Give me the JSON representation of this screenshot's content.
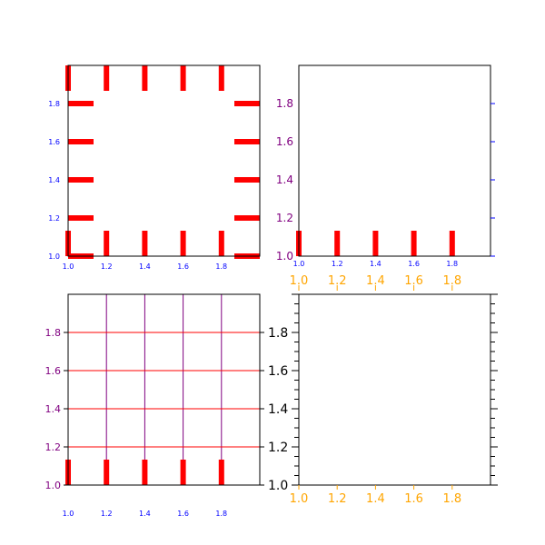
{
  "figure": {
    "background": "#ffffff"
  },
  "colors": {
    "red": "#ff0000",
    "blue": "#0000ff",
    "purple": "#800080",
    "orange": "#ffa500",
    "black": "#000000"
  },
  "chart_data": [
    {
      "type": "scatter",
      "panel": "top-left",
      "xlim": [
        1.0,
        2.0
      ],
      "ylim": [
        1.0,
        2.0
      ],
      "x_ticks": [
        1.0,
        1.2,
        1.4,
        1.6,
        1.8
      ],
      "x_tick_labels": [
        "1.0",
        "1.2",
        "1.4",
        "1.6",
        "1.8"
      ],
      "y_ticks": [
        1.0,
        1.2,
        1.4,
        1.6,
        1.8
      ],
      "y_tick_labels": [
        "1.0",
        "1.2",
        "1.4",
        "1.6",
        "1.8"
      ],
      "tick_label_color": "#0000ff",
      "tick_color": "#ff0000",
      "ticks_on": [
        "bottom",
        "top",
        "left",
        "right"
      ],
      "tick_style": "long thick inward",
      "grid": false
    },
    {
      "type": "scatter",
      "panel": "top-right",
      "xlim": [
        1.0,
        2.0
      ],
      "ylim": [
        1.0,
        2.0
      ],
      "x_ticks": [
        1.0,
        1.2,
        1.4,
        1.6,
        1.8
      ],
      "x_tick_labels": [
        "1.0",
        "1.2",
        "1.4",
        "1.6",
        "1.8"
      ],
      "y_ticks": [
        1.0,
        1.2,
        1.4,
        1.6,
        1.8
      ],
      "y_tick_labels": [
        "1.2",
        "1.4",
        "1.6",
        "1.8"
      ],
      "x_tick_label_color": "#0000ff",
      "y_tick_label_color": "#800080",
      "x_tick_color": "#ff0000",
      "y_tick_color": "#0000ff",
      "ticks_on": [
        "bottom",
        "right"
      ],
      "grid": false
    },
    {
      "type": "scatter",
      "panel": "bottom-left",
      "xlim": [
        1.0,
        2.0
      ],
      "ylim": [
        1.0,
        2.0
      ],
      "x_ticks": [
        1.0,
        1.2,
        1.4,
        1.6,
        1.8
      ],
      "x_tick_labels": [
        "1.0",
        "1.2",
        "1.4",
        "1.6",
        "1.8"
      ],
      "x_top_tick_labels": [
        "1.0",
        "1.2",
        "1.4",
        "1.6",
        "1.8"
      ],
      "y_ticks": [
        1.0,
        1.2,
        1.4,
        1.6,
        1.8
      ],
      "y_tick_labels": [
        "1.0",
        "1.2",
        "1.4",
        "1.6",
        "1.8"
      ],
      "y_right_tick_labels": [
        "1.0",
        "1.2",
        "1.4",
        "1.6",
        "1.8"
      ],
      "x_tick_label_color": "#0000ff",
      "x_top_tick_label_color": "#ffa500",
      "y_tick_label_color": "#800080",
      "y_right_tick_label_color": "#000000",
      "vgrid_color": "#800080",
      "hgrid_color": "#ff0000",
      "grid": true
    },
    {
      "type": "scatter",
      "panel": "bottom-right",
      "xlim": [
        1.0,
        2.0
      ],
      "ylim": [
        1.0,
        2.0
      ],
      "x_ticks": [
        1.0,
        1.2,
        1.4,
        1.6,
        1.8
      ],
      "x_tick_labels": [
        "1.0",
        "1.2",
        "1.4",
        "1.6",
        "1.8"
      ],
      "x_tick_label_color": "#ffa500",
      "y_tick_color": "#000000",
      "y_minor_ticks": true,
      "ticks_on": [
        "bottom",
        "left",
        "right"
      ],
      "grid": false
    }
  ]
}
